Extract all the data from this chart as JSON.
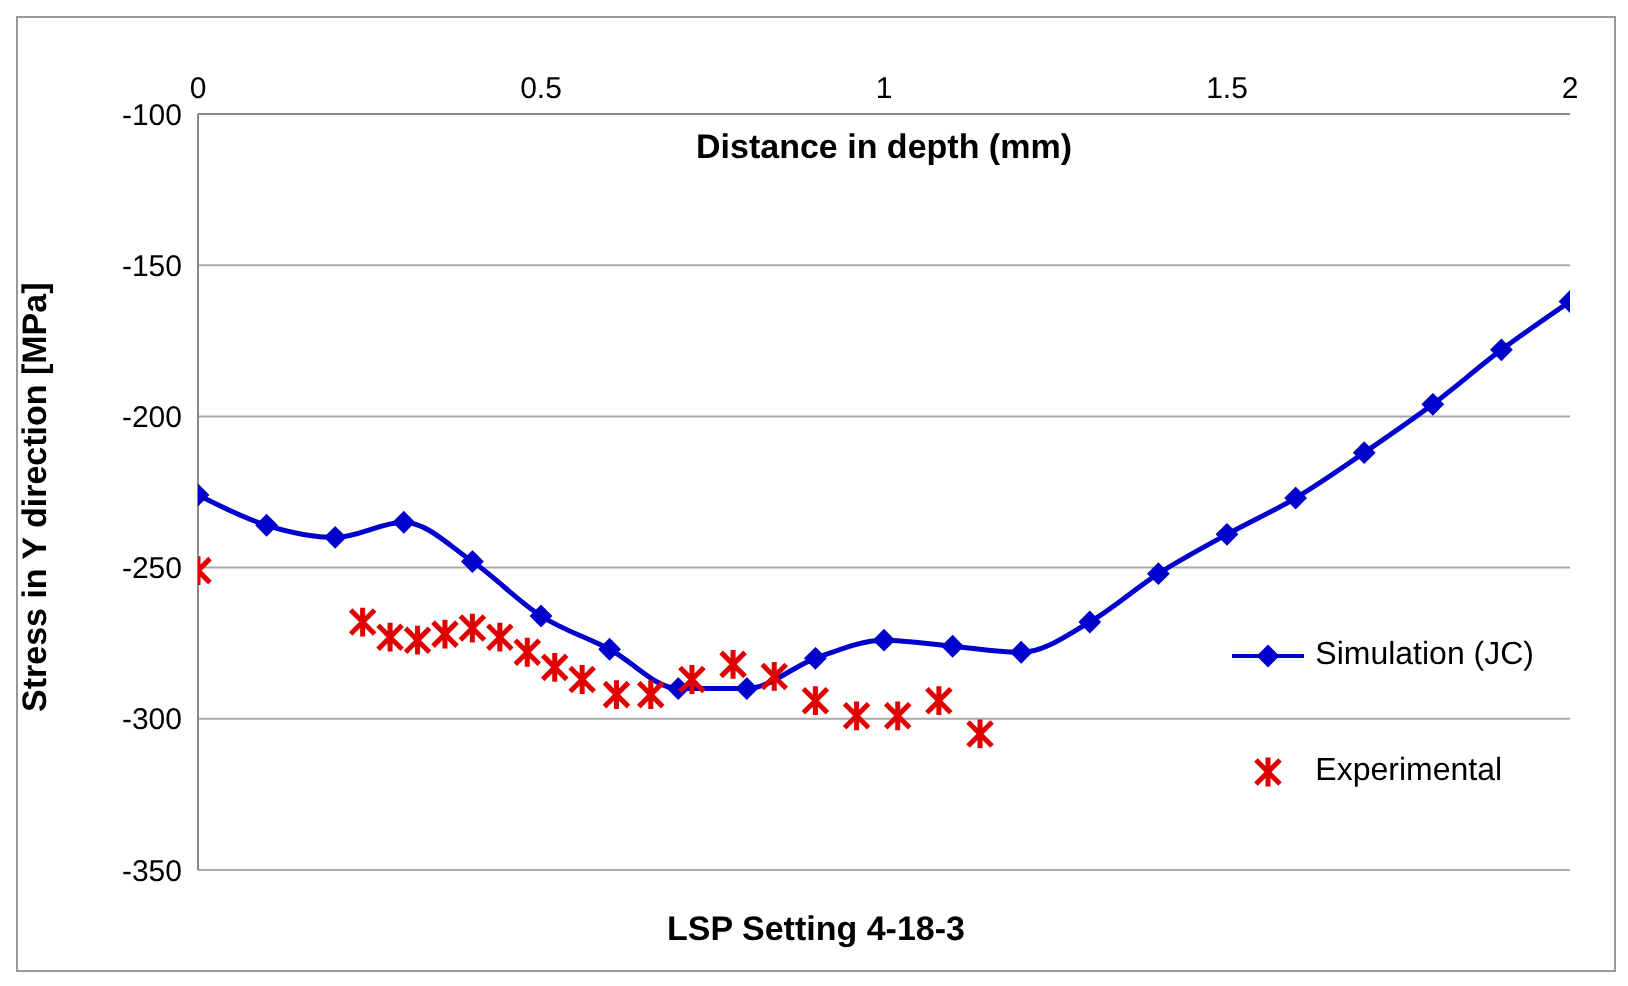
{
  "chart_data": {
    "type": "line",
    "title": "LSP Setting 4-18-3",
    "xlabel": "Distance in depth (mm)",
    "ylabel": "Stress in Y direction [MPa]",
    "xlim": [
      0,
      2
    ],
    "xticks": [
      0,
      0.5,
      1,
      1.5,
      2
    ],
    "ylim": [
      -350,
      -100
    ],
    "yticks": [
      -350,
      -300,
      -250,
      -200,
      -150,
      -100
    ],
    "grid": "y",
    "legend": "right",
    "series": [
      {
        "name": "Simulation (JC)",
        "marker": "diamond",
        "color": "#0000cc",
        "x": [
          0,
          0.1,
          0.2,
          0.3,
          0.4,
          0.5,
          0.6,
          0.7,
          0.8,
          0.9,
          1.0,
          1.1,
          1.2,
          1.3,
          1.4,
          1.5,
          1.6,
          1.7,
          1.8,
          1.9,
          2.0
        ],
        "values": [
          -226,
          -236,
          -240,
          -235,
          -248,
          -266,
          -277,
          -290,
          -290,
          -280,
          -274,
          -276,
          -278,
          -268,
          -252,
          -239,
          -227,
          -212,
          -196,
          -178,
          -162
        ]
      },
      {
        "name": "Experimental",
        "type": "scatter",
        "marker": "cross",
        "color": "#e00000",
        "x": [
          0,
          0.24,
          0.28,
          0.32,
          0.36,
          0.4,
          0.44,
          0.48,
          0.52,
          0.56,
          0.61,
          0.66,
          0.72,
          0.78,
          0.84,
          0.9,
          0.96,
          1.02,
          1.08,
          1.14
        ],
        "values": [
          -251,
          -268,
          -273,
          -274,
          -272,
          -270,
          -273,
          -278,
          -283,
          -287,
          -292,
          -292,
          -287,
          -282,
          -286,
          -294,
          -299,
          -299,
          -294,
          -305
        ]
      }
    ]
  }
}
